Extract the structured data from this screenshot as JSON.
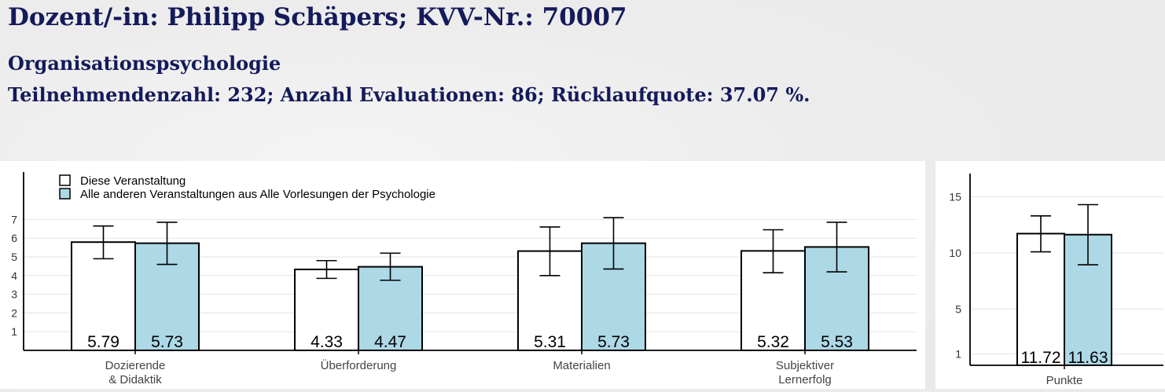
{
  "header": {
    "title": "Dozent/-in: Philipp Schäpers; KVV-Nr.: 70007",
    "course": "Organisationspsychologie",
    "stats": "Teilnehmendenzahl: 232; Anzahl Evaluationen: 86; Rücklaufquote: 37.07 %."
  },
  "colors": {
    "this_course": "#ffffff",
    "other_courses": "#add8e6",
    "text": "#141a5a"
  },
  "chart_data": [
    {
      "type": "bar",
      "categories": [
        "Dozierende\n& Didaktik",
        "Überforderung",
        "Materialien",
        "Subjektiver\nLernerfolg"
      ],
      "series": [
        {
          "name": "Diese Veranstaltung",
          "values": [
            5.79,
            4.33,
            5.31,
            5.32
          ],
          "err_low": [
            4.9,
            3.85,
            4.0,
            4.15
          ],
          "err_high": [
            6.65,
            4.8,
            6.6,
            6.45
          ]
        },
        {
          "name": "Alle anderen Veranstaltungen aus Alle Vorlesungen der Psychologie",
          "values": [
            5.73,
            4.47,
            5.73,
            5.53
          ],
          "err_low": [
            4.6,
            3.75,
            4.35,
            4.2
          ],
          "err_high": [
            6.85,
            5.2,
            7.1,
            6.85
          ]
        }
      ],
      "value_labels": [
        [
          "5.79",
          "4.33",
          "5.31",
          "5.32"
        ],
        [
          "5.73",
          "4.47",
          "5.73",
          "5.53"
        ]
      ],
      "yticks": [
        "1",
        "2",
        "3",
        "4",
        "5",
        "6",
        "7"
      ],
      "ylim": [
        0,
        7.8
      ],
      "legend": "top-left",
      "grid": true
    },
    {
      "type": "bar",
      "categories": [
        "Punkte"
      ],
      "series": [
        {
          "name": "Diese Veranstaltung",
          "values": [
            11.72
          ],
          "err_low": [
            10.1
          ],
          "err_high": [
            13.3
          ]
        },
        {
          "name": "Alle anderen Veranstaltungen aus Alle Vorlesungen der Psychologie",
          "values": [
            11.63
          ],
          "err_low": [
            8.95
          ],
          "err_high": [
            14.3
          ]
        }
      ],
      "value_labels": [
        [
          "11.72"
        ],
        [
          "11.63"
        ]
      ],
      "yticks": [
        "1",
        "5",
        "10",
        "15"
      ],
      "ylim": [
        0,
        16.5
      ],
      "grid": true
    }
  ]
}
